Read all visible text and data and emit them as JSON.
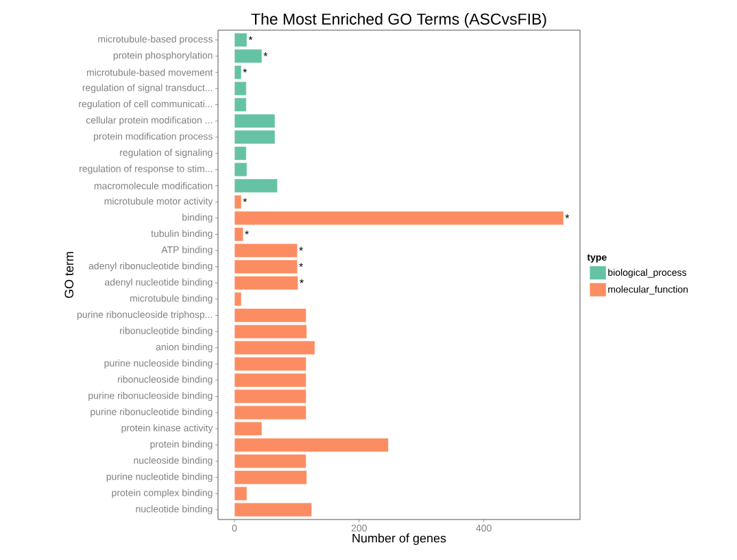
{
  "chart_data": {
    "type": "bar",
    "orientation": "horizontal",
    "title": "The Most Enriched GO Terms (ASCvsFIB)",
    "xlabel": "Number of genes",
    "ylabel": "GO term",
    "legend_title": "type",
    "categories": [
      "microtubule-based process",
      "protein phosphorylation",
      "microtubule-based movement",
      "regulation of signal transduct...",
      "regulation of cell communicati...",
      "cellular protein modification ...",
      "protein modification process",
      "regulation of signaling",
      "regulation of response to stim...",
      "macromolecule modification",
      "microtubule motor activity",
      "binding",
      "tubulin binding",
      "ATP binding",
      "adenyl ribonucleotide binding",
      "adenyl nucleotide binding",
      "microtubule binding",
      "purine ribonucleoside triphosp...",
      "ribonucleotide binding",
      "anion binding",
      "purine nucleoside binding",
      "ribonucleoside binding",
      "purine ribonucleoside binding",
      "purine ribonucleotide binding",
      "protein kinase activity",
      "protein binding",
      "nucleoside binding",
      "purine nucleotide binding",
      "protein complex binding",
      "nucleotide binding"
    ],
    "series": [
      {
        "name": "biological_process",
        "color": "#66c2a5",
        "values": [
          20,
          44,
          11,
          19,
          19,
          65,
          65,
          19,
          20,
          69,
          null,
          null,
          null,
          null,
          null,
          null,
          null,
          null,
          null,
          null,
          null,
          null,
          null,
          null,
          null,
          null,
          null,
          null,
          null,
          null
        ]
      },
      {
        "name": "molecular_function",
        "color": "#fc8d62",
        "values": [
          null,
          null,
          null,
          null,
          null,
          null,
          null,
          null,
          null,
          null,
          11,
          528,
          14,
          101,
          101,
          102,
          11,
          115,
          116,
          129,
          115,
          115,
          115,
          115,
          44,
          247,
          115,
          116,
          20,
          124
        ]
      }
    ],
    "xlim": [
      -26.4,
      554.4
    ],
    "xticks": [
      0,
      200,
      400
    ],
    "grid": false,
    "legend": "right",
    "annotations": [
      {
        "text": "*",
        "x": 20,
        "y": "microtubule-based process"
      },
      {
        "text": "*",
        "x": 44,
        "y": "protein phosphorylation"
      },
      {
        "text": "*",
        "x": 11,
        "y": "microtubule-based movement"
      },
      {
        "text": "*",
        "x": 11,
        "y": "microtubule motor activity"
      },
      {
        "text": "*",
        "x": 528,
        "y": "binding"
      },
      {
        "text": "*",
        "x": 14,
        "y": "tubulin binding"
      },
      {
        "text": "*",
        "x": 101,
        "y": "ATP binding"
      },
      {
        "text": "*",
        "x": 101,
        "y": "adenyl ribonucleotide binding"
      },
      {
        "text": "*",
        "x": 102,
        "y": "adenyl nucleotide binding"
      }
    ]
  }
}
